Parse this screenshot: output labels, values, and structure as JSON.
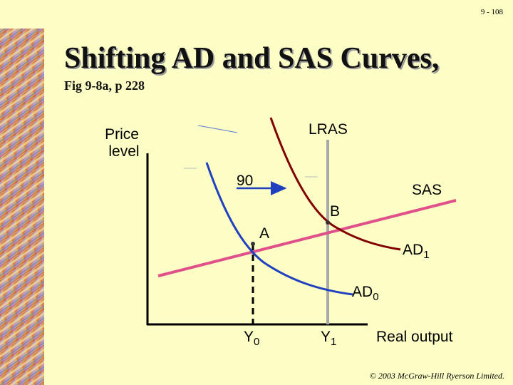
{
  "header": {
    "page_number": "9 - 108",
    "title": "Shifting AD and SAS Curves,",
    "subtitle": "Fig 9-8a, p 228"
  },
  "diagram": {
    "y_axis_label": [
      "Price",
      "level"
    ],
    "x_axis_label": "Real output",
    "lras_label": "LRAS",
    "sas_label": "SAS",
    "shift_label": "90",
    "point_a": "A",
    "point_b": "B",
    "ad1_label": {
      "main": "AD",
      "sub": "1"
    },
    "ad0_label": {
      "main": "AD",
      "sub": "0"
    },
    "y0_label": {
      "main": "Y",
      "sub": "0"
    },
    "y1_label": {
      "main": "Y",
      "sub": "1"
    }
  },
  "footer": {
    "copyright": "© 2003 McGraw-Hill Ryerson Limited."
  }
}
